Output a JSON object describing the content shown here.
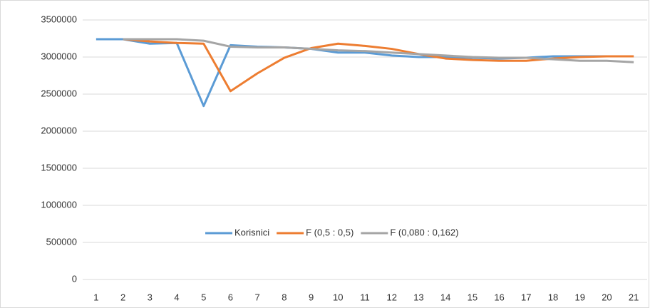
{
  "chart_data": {
    "type": "line",
    "categories": [
      "1",
      "2",
      "3",
      "4",
      "5",
      "6",
      "7",
      "8",
      "9",
      "10",
      "11",
      "12",
      "13",
      "14",
      "15",
      "16",
      "17",
      "18",
      "19",
      "20",
      "21"
    ],
    "series": [
      {
        "name": "Korisnici",
        "color": "#5b9bd5",
        "values": [
          3240000,
          3240000,
          3180000,
          3190000,
          2340000,
          3160000,
          3140000,
          3130000,
          3110000,
          3060000,
          3060000,
          3020000,
          3000000,
          3000000,
          2990000,
          2980000,
          2990000,
          3010000,
          3010000,
          3010000,
          3010000
        ]
      },
      {
        "name": "F (0,5 : 0,5)",
        "color": "#ed7d31",
        "values": [
          null,
          3240000,
          3210000,
          3190000,
          3180000,
          2540000,
          2780000,
          2990000,
          3120000,
          3180000,
          3150000,
          3110000,
          3040000,
          2980000,
          2960000,
          2950000,
          2950000,
          2980000,
          3000000,
          3010000,
          3010000
        ]
      },
      {
        "name": "F (0,080 : 0,162)",
        "color": "#a5a5a5",
        "values": [
          null,
          3240000,
          3240000,
          3240000,
          3220000,
          3140000,
          3130000,
          3130000,
          3110000,
          3090000,
          3080000,
          3060000,
          3040000,
          3020000,
          3000000,
          2990000,
          2990000,
          2970000,
          2950000,
          2950000,
          2930000
        ]
      }
    ],
    "ylim": [
      0,
      3500000
    ],
    "yticks": [
      0,
      500000,
      1000000,
      1500000,
      2000000,
      2500000,
      3000000,
      3500000
    ],
    "grid": true,
    "legend": "bottom-inside"
  }
}
